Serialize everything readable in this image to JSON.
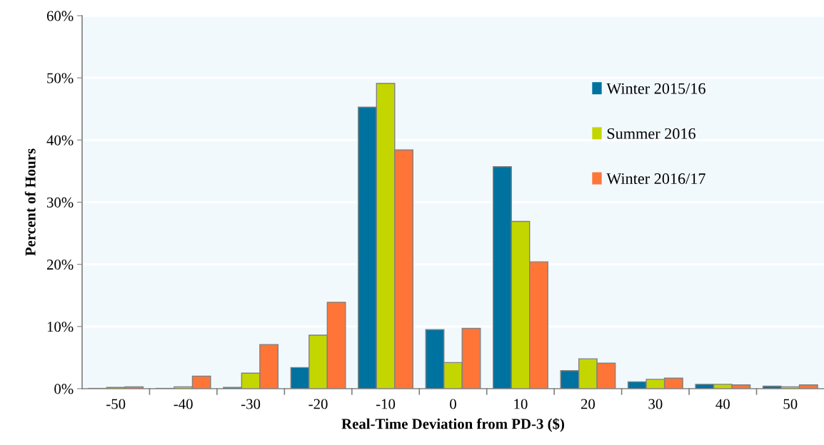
{
  "chart_data": {
    "type": "bar",
    "xlabel": "Real-Time Deviation from PD-3 ($)",
    "ylabel": "Percent of Hours",
    "categories": [
      "-50",
      "-40",
      "-30",
      "-20",
      "-10",
      "0",
      "10",
      "20",
      "30",
      "40",
      "50"
    ],
    "series": [
      {
        "name": "Winter 2015/16",
        "color": "#00729f",
        "values": [
          0.05,
          0.05,
          0.2,
          3.4,
          45.3,
          9.5,
          35.7,
          2.9,
          1.1,
          0.7,
          0.4
        ]
      },
      {
        "name": "Summer 2016",
        "color": "#c4d600",
        "values": [
          0.2,
          0.3,
          2.5,
          8.6,
          49.1,
          4.2,
          26.9,
          4.8,
          1.5,
          0.7,
          0.3
        ]
      },
      {
        "name": "Winter 2016/17",
        "color": "#ff7538",
        "values": [
          0.3,
          2.0,
          7.1,
          13.9,
          38.4,
          9.7,
          20.4,
          4.1,
          1.7,
          0.6,
          0.6
        ]
      }
    ],
    "ylim": [
      0,
      60
    ],
    "yticks": [
      {
        "value": 0,
        "label": "0%"
      },
      {
        "value": 10,
        "label": "10%"
      },
      {
        "value": 20,
        "label": "20%"
      },
      {
        "value": 30,
        "label": "30%"
      },
      {
        "value": 40,
        "label": "40%"
      },
      {
        "value": 50,
        "label": "50%"
      },
      {
        "value": 60,
        "label": "60%"
      }
    ],
    "grid": "y",
    "legend": "top right"
  }
}
